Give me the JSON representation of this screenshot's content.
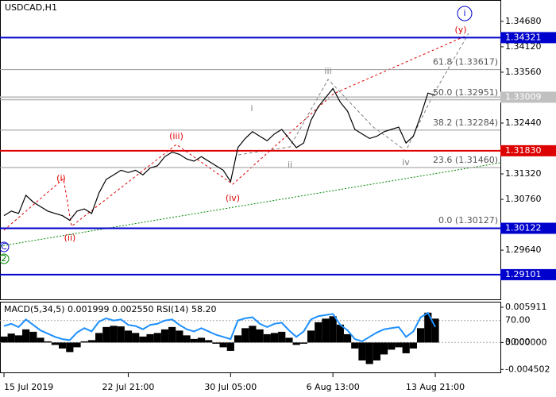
{
  "chart_data": [
    {
      "type": "line",
      "title": "USDCAD,H1",
      "color": "#000000",
      "categories": [
        "15 Jul 2019",
        null,
        null,
        null,
        null,
        null,
        null,
        null,
        null,
        null,
        null,
        null,
        null,
        null,
        null,
        null,
        null,
        "22 Jul 21:00",
        null,
        null,
        null,
        null,
        null,
        null,
        null,
        null,
        null,
        null,
        null,
        null,
        null,
        "30 Jul 05:00",
        null,
        null,
        null,
        null,
        null,
        null,
        null,
        null,
        null,
        null,
        null,
        null,
        null,
        "6 Aug 13:00",
        null,
        null,
        null,
        null,
        null,
        null,
        null,
        null,
        null,
        null,
        null,
        null,
        null,
        "13 Aug 21:00"
      ],
      "values": [
        1.304,
        1.305,
        1.3045,
        1.3085,
        1.307,
        1.306,
        1.305,
        1.3045,
        1.304,
        1.303,
        1.305,
        1.3055,
        1.3045,
        1.309,
        1.312,
        1.313,
        1.314,
        1.3135,
        1.314,
        1.313,
        1.3145,
        1.315,
        1.317,
        1.318,
        1.3175,
        1.3165,
        1.316,
        1.317,
        1.316,
        1.315,
        1.314,
        1.3115,
        1.319,
        1.321,
        1.3225,
        1.3215,
        1.3205,
        1.322,
        1.323,
        1.321,
        1.319,
        1.32,
        1.325,
        1.328,
        1.33,
        1.332,
        1.329,
        1.327,
        1.323,
        1.322,
        1.321,
        1.3215,
        1.3225,
        1.323,
        1.3235,
        1.32,
        1.3215,
        1.326,
        1.331,
        1.3305
      ],
      "ylim": [
        1.2854,
        1.3515
      ],
      "yticks": [
        {
          "value": 1.3468,
          "label": "1.34680"
        },
        {
          "value": 1.3412,
          "label": "1.34120"
        },
        {
          "value": 1.3356,
          "label": "1.33560"
        },
        {
          "value": 1.3244,
          "label": "1.32440"
        },
        {
          "value": 1.3132,
          "label": "1.31320"
        },
        {
          "value": 1.3076,
          "label": "1.30760"
        },
        {
          "value": 1.2964,
          "label": "1.29640"
        }
      ],
      "levels": [
        {
          "value": 1.34321,
          "label": "1.34321",
          "color": "#0000cc"
        },
        {
          "value": 1.3183,
          "label": "1.31830",
          "color": "#dd0000"
        },
        {
          "value": 1.30122,
          "label": "1.30122",
          "color": "#0000cc"
        },
        {
          "value": 1.29101,
          "label": "1.29101",
          "color": "#0000cc"
        },
        {
          "value": 1.33009,
          "label": "1.33009",
          "color": "#c0c0c0"
        }
      ],
      "fib_levels": [
        {
          "value": 1.33617,
          "label": "61.8 (1.33617)"
        },
        {
          "value": 1.32951,
          "label": "50.0 (1.32951)"
        },
        {
          "value": 1.32284,
          "label": "38.2 (1.32284)"
        },
        {
          "value": 1.3146,
          "label": "23.6 (1.31460)"
        },
        {
          "value": 1.30127,
          "label": "0.0 (1.30127)"
        }
      ],
      "annotations": [
        {
          "text": "(i)",
          "color": "#dd0000"
        },
        {
          "text": "(ii)",
          "color": "#dd0000"
        },
        {
          "text": "(iii)",
          "color": "#dd0000"
        },
        {
          "text": "(iv)",
          "color": "#dd0000"
        },
        {
          "text": "(y)",
          "color": "#dd0000"
        },
        {
          "text": "i",
          "color": "#808080"
        },
        {
          "text": "ii",
          "color": "#808080"
        },
        {
          "text": "iii",
          "color": "#808080"
        },
        {
          "text": "iv",
          "color": "#808080"
        },
        {
          "text": "i",
          "color": "#0000cc"
        },
        {
          "text": "C",
          "color": "#0000cc"
        },
        {
          "text": "2",
          "color": "#008800"
        }
      ]
    },
    {
      "type": "macd",
      "title": "MACD(5,34,5) 0.001999 0.002550 RSI(14) 58.20",
      "histogram": [
        0.001,
        0.0015,
        0.0012,
        0.0022,
        0.0018,
        0.0008,
        0.0002,
        -0.0004,
        -0.001,
        -0.0016,
        -0.0008,
        0.0002,
        0.0004,
        0.0016,
        0.0026,
        0.0028,
        0.0027,
        0.002,
        0.0016,
        0.001,
        0.0014,
        0.0016,
        0.0022,
        0.0026,
        0.002,
        0.0012,
        0.0006,
        0.0008,
        0.0004,
        -0.0002,
        -0.0008,
        -0.0014,
        0.0012,
        0.0024,
        0.0028,
        0.0022,
        0.0014,
        0.0016,
        0.0018,
        0.0008,
        -0.0004,
        -0.0002,
        0.002,
        0.0034,
        0.004,
        0.0044,
        0.003,
        0.0014,
        -0.001,
        -0.003,
        -0.0036,
        -0.003,
        -0.002,
        -0.0012,
        -0.0008,
        -0.0018,
        -0.001,
        0.0024,
        0.005,
        0.004
      ],
      "rsi": [
        60,
        64,
        58,
        72,
        62,
        52,
        46,
        40,
        36,
        34,
        48,
        56,
        50,
        68,
        74,
        70,
        72,
        62,
        60,
        54,
        62,
        64,
        70,
        72,
        62,
        54,
        50,
        56,
        50,
        44,
        40,
        36,
        70,
        74,
        76,
        64,
        58,
        64,
        66,
        52,
        40,
        50,
        72,
        78,
        80,
        82,
        62,
        52,
        36,
        32,
        40,
        48,
        54,
        56,
        58,
        40,
        50,
        76,
        84,
        58
      ],
      "rsi_color": "#1e90ff",
      "ylim": [
        -0.005,
        0.0067
      ],
      "yticks": [
        {
          "value": 0.005911,
          "label": "0.005911"
        },
        {
          "value": 0.0,
          "label": "0.000000"
        },
        {
          "value": -0.004502,
          "label": "-0.004502"
        }
      ],
      "y2lim": [
        -25,
        103
      ],
      "y2ticks": [
        {
          "value": 70,
          "label": "70.00"
        },
        {
          "value": 30,
          "label": "30.00"
        }
      ]
    }
  ]
}
